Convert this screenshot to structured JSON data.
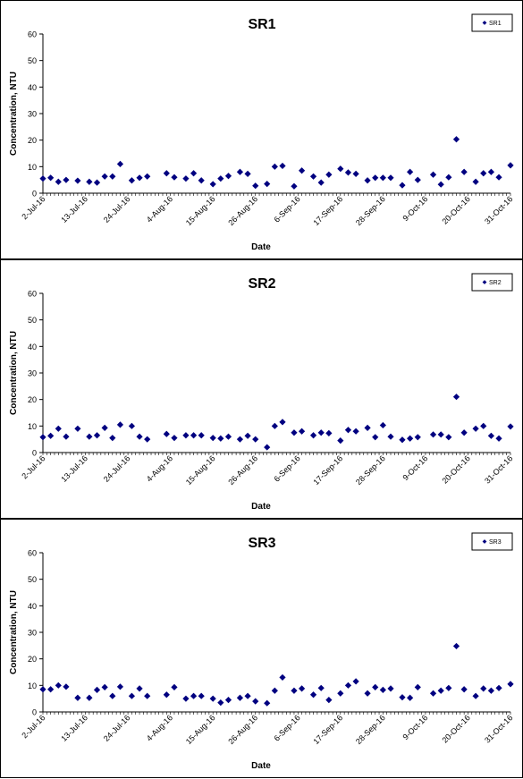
{
  "chart_data": [
    {
      "type": "scatter",
      "title": "SR1",
      "xlabel": "Date",
      "ylabel": "Concentration, NTU",
      "ylim": [
        0,
        60
      ],
      "yticks": [
        "0",
        "10",
        "20",
        "30",
        "40",
        "50",
        "60"
      ],
      "xlim": [
        "2016-07-02",
        "2016-10-31"
      ],
      "xticks": [
        "2-Jul-16",
        "13-Jul-16",
        "24-Jul-16",
        "4-Aug-16",
        "15-Aug-16",
        "26-Aug-16",
        "6-Sep-16",
        "17-Sep-16",
        "28-Sep-16",
        "9-Oct-16",
        "20-Oct-16",
        "31-Oct-16"
      ],
      "legend_position": "top-right",
      "color": "#000080",
      "series": [
        {
          "name": "SR1",
          "points": [
            [
              "2016-07-02",
              5.5
            ],
            [
              "2016-07-04",
              5.8
            ],
            [
              "2016-07-06",
              4.3
            ],
            [
              "2016-07-08",
              5.0
            ],
            [
              "2016-07-11",
              4.7
            ],
            [
              "2016-07-14",
              4.3
            ],
            [
              "2016-07-16",
              4.0
            ],
            [
              "2016-07-18",
              6.3
            ],
            [
              "2016-07-20",
              6.3
            ],
            [
              "2016-07-22",
              11.0
            ],
            [
              "2016-07-25",
              4.8
            ],
            [
              "2016-07-27",
              5.8
            ],
            [
              "2016-07-29",
              6.3
            ],
            [
              "2016-08-03",
              7.5
            ],
            [
              "2016-08-05",
              6.0
            ],
            [
              "2016-08-08",
              5.5
            ],
            [
              "2016-08-10",
              7.5
            ],
            [
              "2016-08-12",
              4.8
            ],
            [
              "2016-08-15",
              3.4
            ],
            [
              "2016-08-17",
              5.5
            ],
            [
              "2016-08-19",
              6.5
            ],
            [
              "2016-08-22",
              8.0
            ],
            [
              "2016-08-24",
              7.3
            ],
            [
              "2016-08-26",
              2.8
            ],
            [
              "2016-08-29",
              3.5
            ],
            [
              "2016-08-31",
              10.0
            ],
            [
              "2016-09-02",
              10.3
            ],
            [
              "2016-09-05",
              2.6
            ],
            [
              "2016-09-07",
              8.5
            ],
            [
              "2016-09-10",
              6.3
            ],
            [
              "2016-09-12",
              4.0
            ],
            [
              "2016-09-14",
              7.0
            ],
            [
              "2016-09-17",
              9.2
            ],
            [
              "2016-09-19",
              7.8
            ],
            [
              "2016-09-21",
              7.3
            ],
            [
              "2016-09-24",
              4.8
            ],
            [
              "2016-09-26",
              5.8
            ],
            [
              "2016-09-28",
              5.8
            ],
            [
              "2016-09-30",
              5.8
            ],
            [
              "2016-10-03",
              3.0
            ],
            [
              "2016-10-05",
              8.0
            ],
            [
              "2016-10-07",
              5.0
            ],
            [
              "2016-10-11",
              7.0
            ],
            [
              "2016-10-13",
              3.3
            ],
            [
              "2016-10-15",
              6.0
            ],
            [
              "2016-10-17",
              20.3
            ],
            [
              "2016-10-19",
              8.0
            ],
            [
              "2016-10-22",
              4.3
            ],
            [
              "2016-10-24",
              7.5
            ],
            [
              "2016-10-26",
              8.0
            ],
            [
              "2016-10-28",
              6.0
            ],
            [
              "2016-10-31",
              10.5
            ]
          ]
        }
      ]
    },
    {
      "type": "scatter",
      "title": "SR2",
      "xlabel": "Date",
      "ylabel": "Concentration, NTU",
      "ylim": [
        0,
        60
      ],
      "yticks": [
        "0",
        "10",
        "20",
        "30",
        "40",
        "50",
        "60"
      ],
      "xlim": [
        "2016-07-02",
        "2016-10-31"
      ],
      "xticks": [
        "2-Jul-16",
        "13-Jul-16",
        "24-Jul-16",
        "4-Aug-16",
        "15-Aug-16",
        "26-Aug-16",
        "6-Sep-16",
        "17-Sep-16",
        "28-Sep-16",
        "9-Oct-16",
        "20-Oct-16",
        "31-Oct-16"
      ],
      "legend_position": "top-right",
      "color": "#000080",
      "series": [
        {
          "name": "SR2",
          "points": [
            [
              "2016-07-02",
              5.8
            ],
            [
              "2016-07-04",
              6.3
            ],
            [
              "2016-07-06",
              9.0
            ],
            [
              "2016-07-08",
              6.0
            ],
            [
              "2016-07-11",
              9.0
            ],
            [
              "2016-07-14",
              6.0
            ],
            [
              "2016-07-16",
              6.5
            ],
            [
              "2016-07-18",
              9.3
            ],
            [
              "2016-07-20",
              5.5
            ],
            [
              "2016-07-22",
              10.5
            ],
            [
              "2016-07-25",
              10.0
            ],
            [
              "2016-07-27",
              6.0
            ],
            [
              "2016-07-29",
              5.0
            ],
            [
              "2016-08-03",
              7.0
            ],
            [
              "2016-08-05",
              5.5
            ],
            [
              "2016-08-08",
              6.5
            ],
            [
              "2016-08-10",
              6.5
            ],
            [
              "2016-08-12",
              6.5
            ],
            [
              "2016-08-15",
              5.5
            ],
            [
              "2016-08-17",
              5.3
            ],
            [
              "2016-08-19",
              6.0
            ],
            [
              "2016-08-22",
              5.0
            ],
            [
              "2016-08-24",
              6.3
            ],
            [
              "2016-08-26",
              5.0
            ],
            [
              "2016-08-29",
              2.0
            ],
            [
              "2016-08-31",
              10.0
            ],
            [
              "2016-09-02",
              11.5
            ],
            [
              "2016-09-05",
              7.5
            ],
            [
              "2016-09-07",
              8.0
            ],
            [
              "2016-09-10",
              6.5
            ],
            [
              "2016-09-12",
              7.5
            ],
            [
              "2016-09-14",
              7.3
            ],
            [
              "2016-09-17",
              4.5
            ],
            [
              "2016-09-19",
              8.5
            ],
            [
              "2016-09-21",
              8.0
            ],
            [
              "2016-09-24",
              9.3
            ],
            [
              "2016-09-26",
              5.8
            ],
            [
              "2016-09-28",
              10.3
            ],
            [
              "2016-09-30",
              6.0
            ],
            [
              "2016-10-03",
              4.8
            ],
            [
              "2016-10-05",
              5.3
            ],
            [
              "2016-10-07",
              5.8
            ],
            [
              "2016-10-11",
              6.8
            ],
            [
              "2016-10-13",
              6.8
            ],
            [
              "2016-10-15",
              5.8
            ],
            [
              "2016-10-17",
              21.0
            ],
            [
              "2016-10-19",
              7.5
            ],
            [
              "2016-10-22",
              9.0
            ],
            [
              "2016-10-24",
              10.0
            ],
            [
              "2016-10-26",
              6.3
            ],
            [
              "2016-10-28",
              5.3
            ],
            [
              "2016-10-31",
              9.8
            ]
          ]
        }
      ]
    },
    {
      "type": "scatter",
      "title": "SR3",
      "xlabel": "Date",
      "ylabel": "Concentration, NTU",
      "ylim": [
        0,
        60
      ],
      "yticks": [
        "0",
        "10",
        "20",
        "30",
        "40",
        "50",
        "60"
      ],
      "xlim": [
        "2016-07-02",
        "2016-10-31"
      ],
      "xticks": [
        "2-Jul-16",
        "13-Jul-16",
        "24-Jul-16",
        "4-Aug-16",
        "15-Aug-16",
        "26-Aug-16",
        "6-Sep-16",
        "17-Sep-16",
        "28-Sep-16",
        "9-Oct-16",
        "20-Oct-16",
        "31-Oct-16"
      ],
      "legend_position": "top-right",
      "color": "#000080",
      "series": [
        {
          "name": "SR3",
          "points": [
            [
              "2016-07-02",
              8.5
            ],
            [
              "2016-07-04",
              8.5
            ],
            [
              "2016-07-06",
              10.0
            ],
            [
              "2016-07-08",
              9.5
            ],
            [
              "2016-07-11",
              5.3
            ],
            [
              "2016-07-14",
              5.3
            ],
            [
              "2016-07-16",
              8.3
            ],
            [
              "2016-07-18",
              9.3
            ],
            [
              "2016-07-20",
              6.0
            ],
            [
              "2016-07-22",
              9.5
            ],
            [
              "2016-07-25",
              6.0
            ],
            [
              "2016-07-27",
              8.8
            ],
            [
              "2016-07-29",
              6.0
            ],
            [
              "2016-08-03",
              6.5
            ],
            [
              "2016-08-05",
              9.3
            ],
            [
              "2016-08-08",
              5.0
            ],
            [
              "2016-08-10",
              6.0
            ],
            [
              "2016-08-12",
              6.0
            ],
            [
              "2016-08-15",
              5.0
            ],
            [
              "2016-08-17",
              3.5
            ],
            [
              "2016-08-19",
              4.5
            ],
            [
              "2016-08-22",
              5.3
            ],
            [
              "2016-08-24",
              6.0
            ],
            [
              "2016-08-26",
              4.0
            ],
            [
              "2016-08-29",
              3.3
            ],
            [
              "2016-08-31",
              8.0
            ],
            [
              "2016-09-02",
              13.0
            ],
            [
              "2016-09-05",
              8.0
            ],
            [
              "2016-09-07",
              8.8
            ],
            [
              "2016-09-10",
              6.5
            ],
            [
              "2016-09-12",
              9.0
            ],
            [
              "2016-09-14",
              4.5
            ],
            [
              "2016-09-17",
              7.0
            ],
            [
              "2016-09-19",
              10.0
            ],
            [
              "2016-09-21",
              11.5
            ],
            [
              "2016-09-24",
              7.0
            ],
            [
              "2016-09-26",
              9.3
            ],
            [
              "2016-09-28",
              8.3
            ],
            [
              "2016-09-30",
              8.8
            ],
            [
              "2016-10-03",
              5.5
            ],
            [
              "2016-10-05",
              5.3
            ],
            [
              "2016-10-07",
              9.3
            ],
            [
              "2016-10-11",
              7.0
            ],
            [
              "2016-10-13",
              8.0
            ],
            [
              "2016-10-15",
              9.0
            ],
            [
              "2016-10-17",
              24.8
            ],
            [
              "2016-10-19",
              8.5
            ],
            [
              "2016-10-22",
              6.0
            ],
            [
              "2016-10-24",
              8.8
            ],
            [
              "2016-10-26",
              8.0
            ],
            [
              "2016-10-28",
              9.0
            ],
            [
              "2016-10-31",
              10.5
            ]
          ]
        }
      ]
    }
  ]
}
